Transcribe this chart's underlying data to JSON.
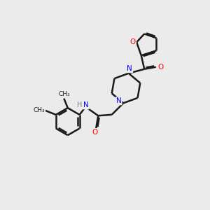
{
  "background_color": "#ebebeb",
  "bond_color": "#1a1a1a",
  "N_color": "#0000ff",
  "O_color": "#ff0000",
  "H_color": "#7a7a7a",
  "line_width": 1.8,
  "dbo": 0.06,
  "figsize": [
    3.0,
    3.0
  ],
  "dpi": 100,
  "xlim": [
    0,
    10
  ],
  "ylim": [
    0,
    10
  ]
}
